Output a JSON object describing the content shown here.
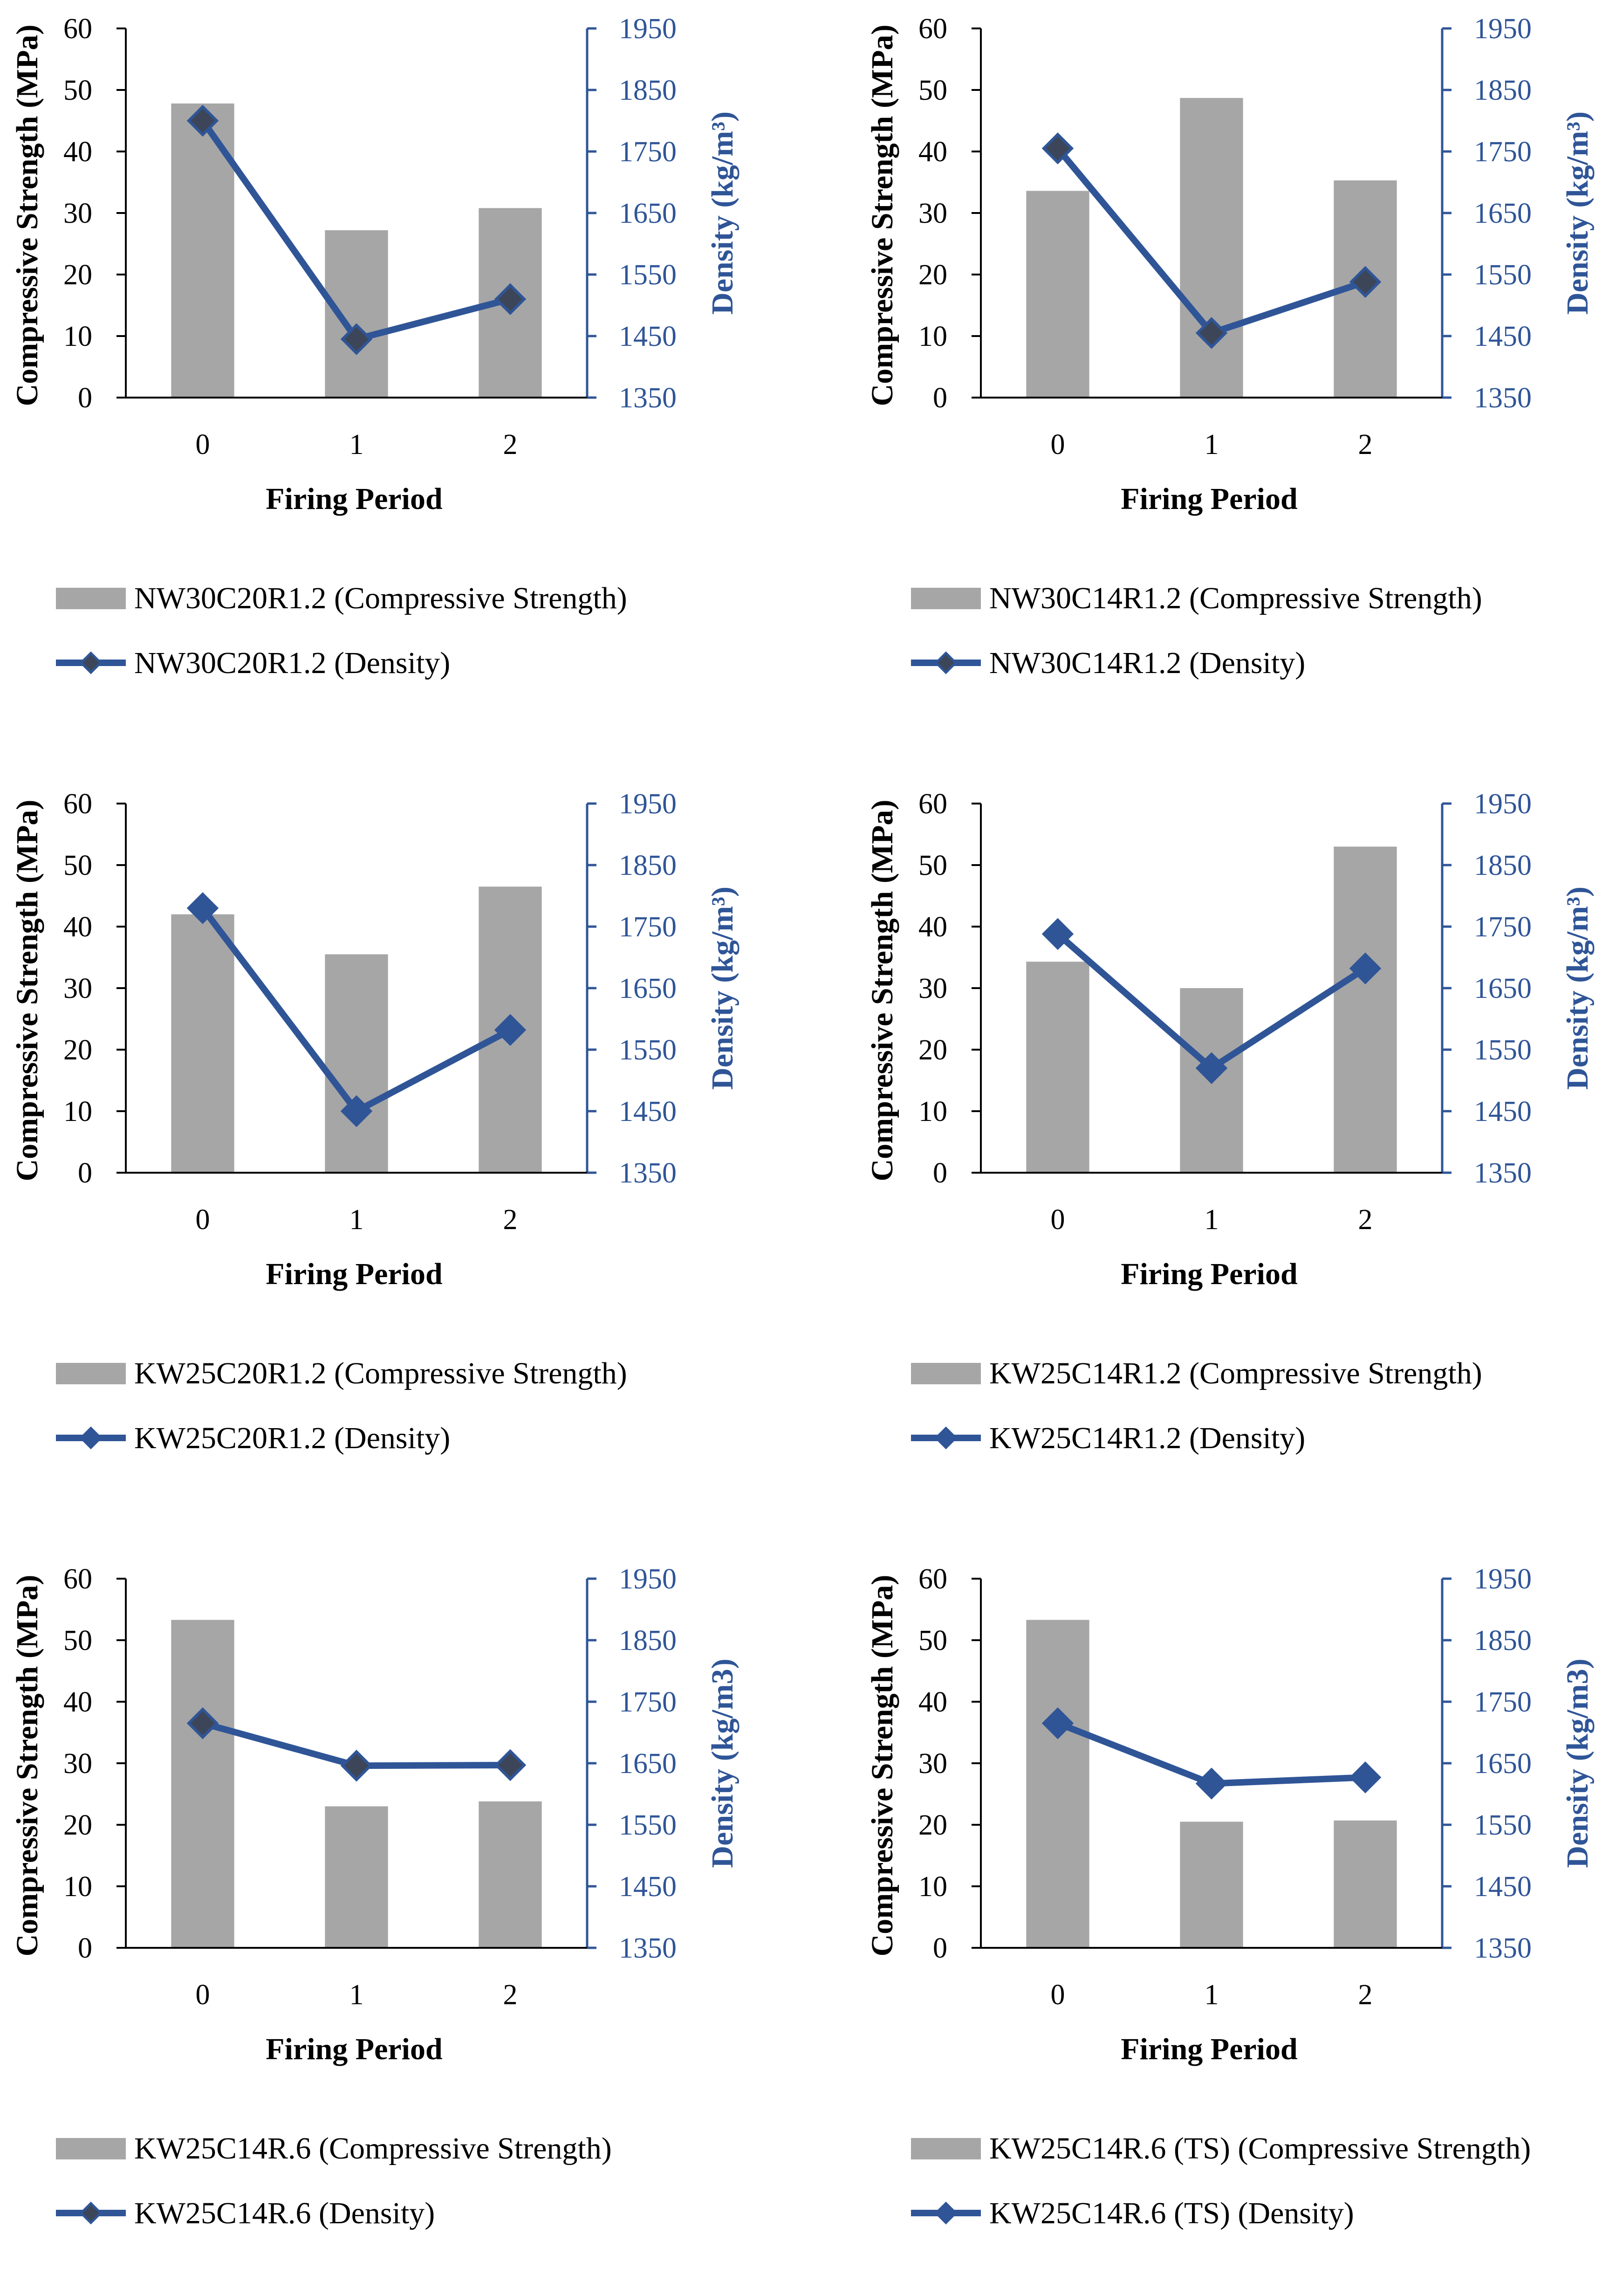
{
  "chart_data": [
    {
      "type": "bar+line",
      "categories": [
        "0",
        "1",
        "2"
      ],
      "xlabel": "Firing Period",
      "ylabel_left": "Compressive Strength (MPa)",
      "ylabel_right": "Density (kg/m³)",
      "ylim_left": [
        0,
        60
      ],
      "ylim_right": [
        1350,
        1950
      ],
      "yticks_left": [
        "0",
        "10",
        "20",
        "30",
        "40",
        "50",
        "60"
      ],
      "yticks_right": [
        "1350",
        "1450",
        "1550",
        "1650",
        "1750",
        "1850",
        "1950"
      ],
      "series": [
        {
          "name": "NW30C20R1.2 (Compressive Strength)",
          "kind": "bar",
          "axis": "left",
          "values": [
            47.8,
            27.2,
            30.8
          ]
        },
        {
          "name": "NW30C20R1.2 (Density)",
          "kind": "line",
          "axis": "right",
          "values": [
            1800,
            1445,
            1510
          ]
        }
      ],
      "legend": [
        "NW30C20R1.2 (Compressive Strength)",
        "NW30C20R1.2 (Density)"
      ],
      "marker_fill": "#3c4658"
    },
    {
      "type": "bar+line",
      "categories": [
        "0",
        "1",
        "2"
      ],
      "xlabel": "Firing Period",
      "ylabel_left": "Compressive Strength (MPa)",
      "ylabel_right": "Density (kg/m³)",
      "ylim_left": [
        0,
        60
      ],
      "ylim_right": [
        1350,
        1950
      ],
      "yticks_left": [
        "0",
        "10",
        "20",
        "30",
        "40",
        "50",
        "60"
      ],
      "yticks_right": [
        "1350",
        "1450",
        "1550",
        "1650",
        "1750",
        "1850",
        "1950"
      ],
      "series": [
        {
          "name": "NW30C14R1.2 (Compressive Strength)",
          "kind": "bar",
          "axis": "left",
          "values": [
            33.6,
            48.7,
            35.3
          ]
        },
        {
          "name": "NW30C14R1.2 (Density)",
          "kind": "line",
          "axis": "right",
          "values": [
            1755,
            1455,
            1538
          ]
        }
      ],
      "legend": [
        "NW30C14R1.2 (Compressive Strength)",
        "NW30C14R1.2 (Density)"
      ],
      "marker_fill": "#3c4658"
    },
    {
      "type": "bar+line",
      "categories": [
        "0",
        "1",
        "2"
      ],
      "xlabel": "Firing Period",
      "ylabel_left": "Compressive Strength (MPa)",
      "ylabel_right": "Density (kg/m³)",
      "ylim_left": [
        0,
        60
      ],
      "ylim_right": [
        1350,
        1950
      ],
      "yticks_left": [
        "0",
        "10",
        "20",
        "30",
        "40",
        "50",
        "60"
      ],
      "yticks_right": [
        "1350",
        "1450",
        "1550",
        "1650",
        "1750",
        "1850",
        "1950"
      ],
      "series": [
        {
          "name": "KW25C20R1.2 (Compressive Strength)",
          "kind": "bar",
          "axis": "left",
          "values": [
            42.0,
            35.5,
            46.5
          ]
        },
        {
          "name": "KW25C20R1.2 (Density)",
          "kind": "line",
          "axis": "right",
          "values": [
            1780,
            1450,
            1582
          ]
        }
      ],
      "legend": [
        "KW25C20R1.2 (Compressive Strength)",
        "KW25C20R1.2 (Density)"
      ],
      "marker_fill": "#2f5597"
    },
    {
      "type": "bar+line",
      "categories": [
        "0",
        "1",
        "2"
      ],
      "xlabel": "Firing Period",
      "ylabel_left": "Compressive Strength (MPa)",
      "ylabel_right": "Density (kg/m³)",
      "ylim_left": [
        0,
        60
      ],
      "ylim_right": [
        1350,
        1950
      ],
      "yticks_left": [
        "0",
        "10",
        "20",
        "30",
        "40",
        "50",
        "60"
      ],
      "yticks_right": [
        "1350",
        "1450",
        "1550",
        "1650",
        "1750",
        "1850",
        "1950"
      ],
      "series": [
        {
          "name": "KW25C14R1.2 (Compressive Strength)",
          "kind": "bar",
          "axis": "left",
          "values": [
            34.3,
            30.0,
            53.0
          ]
        },
        {
          "name": "KW25C14R1.2 (Density)",
          "kind": "line",
          "axis": "right",
          "values": [
            1738,
            1520,
            1682
          ]
        }
      ],
      "legend": [
        "KW25C14R1.2 (Compressive Strength)",
        "KW25C14R1.2 (Density)"
      ],
      "marker_fill": "#2f5597"
    },
    {
      "type": "bar+line",
      "categories": [
        "0",
        "1",
        "2"
      ],
      "xlabel": "Firing Period",
      "ylabel_left": "Compressive Strength (MPa)",
      "ylabel_right": "Density (kg/m3)",
      "ylim_left": [
        0,
        60
      ],
      "ylim_right": [
        1350,
        1950
      ],
      "yticks_left": [
        "0",
        "10",
        "20",
        "30",
        "40",
        "50",
        "60"
      ],
      "yticks_right": [
        "1350",
        "1450",
        "1550",
        "1650",
        "1750",
        "1850",
        "1950"
      ],
      "series": [
        {
          "name": "KW25C14R.6 (Compressive Strength)",
          "kind": "bar",
          "axis": "left",
          "values": [
            53.3,
            23.0,
            23.8
          ]
        },
        {
          "name": "KW25C14R.6 (Density)",
          "kind": "line",
          "axis": "right",
          "values": [
            1715,
            1646,
            1647
          ]
        }
      ],
      "legend": [
        "KW25C14R.6 (Compressive Strength)",
        "KW25C14R.6 (Density)"
      ],
      "marker_fill": "#3c4658"
    },
    {
      "type": "bar+line",
      "categories": [
        "0",
        "1",
        "2"
      ],
      "xlabel": "Firing Period",
      "ylabel_left": "Compressive Strength (MPa)",
      "ylabel_right": "Density (kg/m3)",
      "ylim_left": [
        0,
        60
      ],
      "ylim_right": [
        1350,
        1950
      ],
      "yticks_left": [
        "0",
        "10",
        "20",
        "30",
        "40",
        "50",
        "60"
      ],
      "yticks_right": [
        "1350",
        "1450",
        "1550",
        "1650",
        "1750",
        "1850",
        "1950"
      ],
      "series": [
        {
          "name": "KW25C14R.6 (TS) (Compressive Strength)",
          "kind": "bar",
          "axis": "left",
          "values": [
            53.3,
            20.5,
            20.7
          ]
        },
        {
          "name": "KW25C14R.6 (TS) (Density)",
          "kind": "line",
          "axis": "right",
          "values": [
            1715,
            1617,
            1627
          ]
        }
      ],
      "legend": [
        "KW25C14R.6 (TS) (Compressive Strength)",
        "KW25C14R.6 (TS) (Density)"
      ],
      "marker_fill": "#2f5597"
    }
  ],
  "colors": {
    "bar": "#a6a6a6",
    "line": "#2f5597",
    "axis_left": "#000000",
    "axis_right": "#2f5597"
  }
}
